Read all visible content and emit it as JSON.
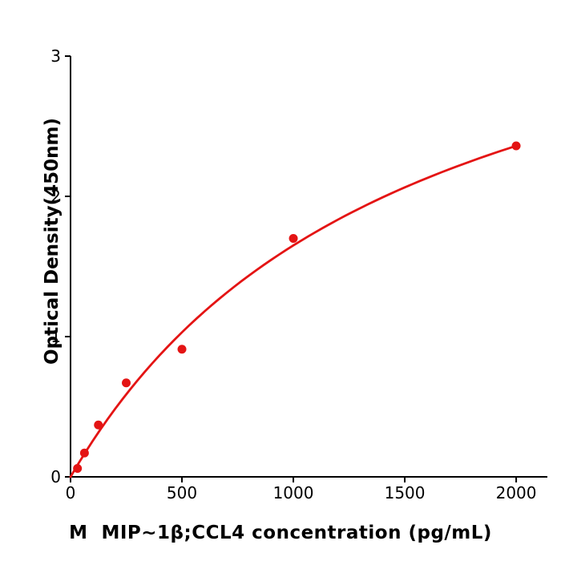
{
  "chart_data": {
    "type": "scatter",
    "title": "",
    "xlabel": "M  MIP~1β;CCL4 concentration (pg/mL)",
    "ylabel": "Optical Density(450nm)",
    "series": [
      {
        "name": "standard-curve-points",
        "x": [
          31.25,
          62.5,
          125,
          250,
          500,
          1000,
          2000
        ],
        "y": [
          0.06,
          0.17,
          0.37,
          0.67,
          0.91,
          1.7,
          2.36
        ]
      }
    ],
    "fit_curve": {
      "model": "michaelis_menten",
      "vmax": 4.14,
      "km": 1509,
      "x_start": 0,
      "x_end": 2000
    },
    "xticks": [
      0,
      500,
      1000,
      1500,
      2000
    ],
    "yticks": [
      0,
      1,
      2,
      3
    ],
    "xlim": [
      0,
      2140
    ],
    "ylim": [
      0,
      3
    ],
    "grid": false,
    "legend_position": "none",
    "marker_color": "#e41414",
    "line_color": "#e41414",
    "axis_color": "#000000",
    "background_color": "#ffffff"
  }
}
